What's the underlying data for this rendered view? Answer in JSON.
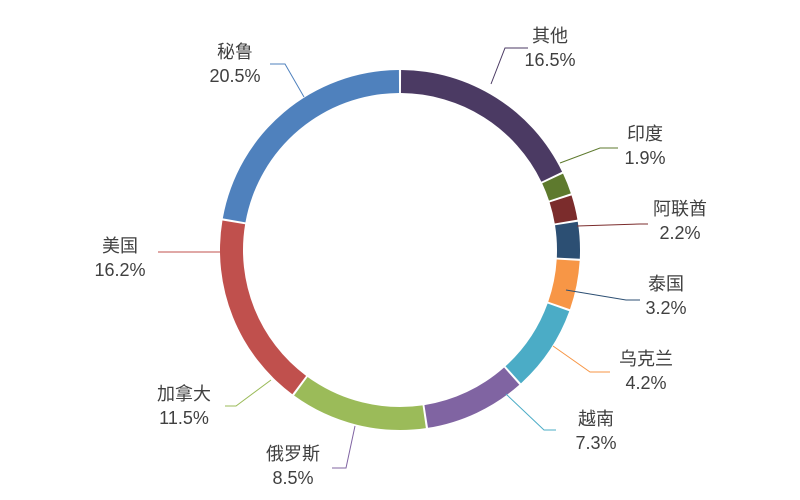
{
  "chart_data": {
    "type": "pie",
    "variant": "donut",
    "title": "",
    "categories": [
      "其他",
      "印度",
      "阿联酋",
      "泰国",
      "乌克兰",
      "越南",
      "俄罗斯",
      "加拿大",
      "美国",
      "秘鲁"
    ],
    "values": [
      16.5,
      1.9,
      2.2,
      3.2,
      4.2,
      7.3,
      8.5,
      11.5,
      16.2,
      20.5
    ],
    "value_labels": [
      "16.5%",
      "1.9%",
      "2.2%",
      "3.2%",
      "4.2%",
      "7.3%",
      "8.5%",
      "11.5%",
      "16.2%",
      "20.5%"
    ],
    "colors": [
      "#4B3A63",
      "#5E7A2E",
      "#7B2C2C",
      "#2C4F73",
      "#F79646",
      "#4BACC6",
      "#8064A2",
      "#9BBB59",
      "#C0504D",
      "#4F81BD",
      "#246A78"
    ],
    "legend": "none"
  }
}
